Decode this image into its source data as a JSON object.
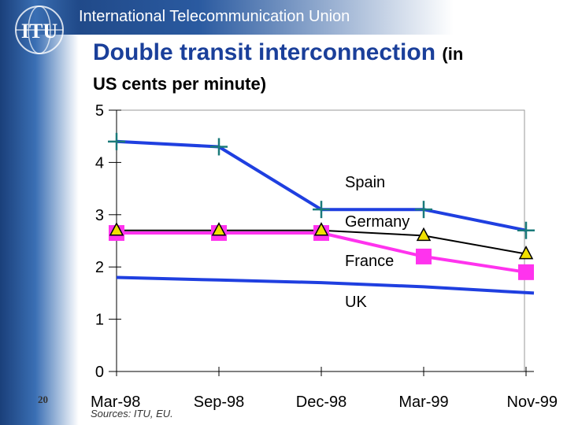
{
  "header": {
    "org_name": "International Telecommunication Union",
    "logo_text": "ITU"
  },
  "slide": {
    "title_main": "Double transit interconnection",
    "title_paren": "(in",
    "title_line2": "US cents per minute)",
    "number": "20",
    "sources": "Sources: ITU, EU."
  },
  "colors": {
    "spain": "#1f3fe0",
    "germany": "#000000",
    "france": "#ff33ee",
    "uk": "#1f3fe0",
    "spain_marker": "#1a7a7a",
    "germany_marker": "#f0e000"
  },
  "chart_data": {
    "type": "line",
    "categories": [
      "Mar-98",
      "Sep-98",
      "Dec-98",
      "Mar-99",
      "Nov-99"
    ],
    "ylim": [
      0,
      5
    ],
    "yticks": [
      "0",
      "1",
      "2",
      "3",
      "4",
      "5"
    ],
    "grid": false,
    "series": [
      {
        "name": "Spain",
        "values": [
          4.4,
          4.3,
          3.1,
          3.1,
          2.7
        ]
      },
      {
        "name": "Germany",
        "values": [
          2.7,
          2.7,
          2.7,
          2.6,
          2.25
        ]
      },
      {
        "name": "France",
        "values": [
          2.65,
          2.65,
          2.65,
          2.2,
          1.9
        ]
      },
      {
        "name": "UK",
        "values": [
          1.8,
          1.75,
          1.7,
          1.62,
          1.5
        ]
      }
    ]
  }
}
